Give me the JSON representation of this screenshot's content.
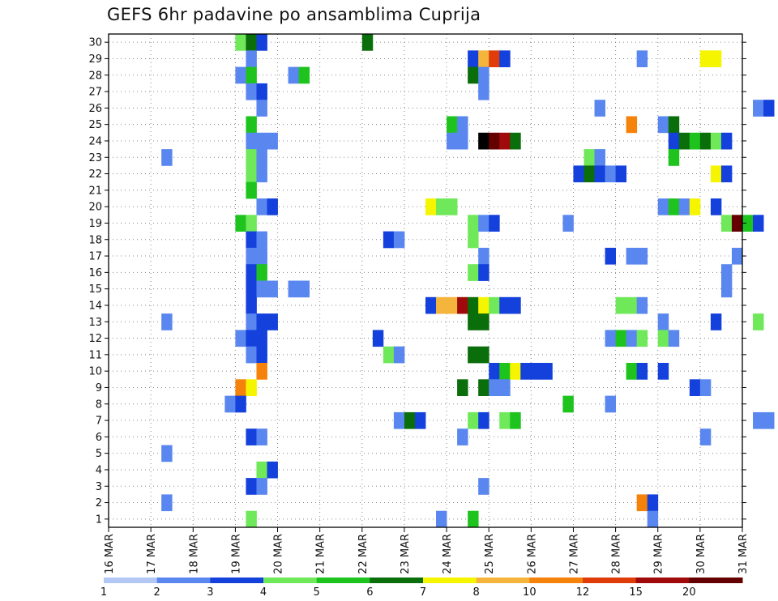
{
  "chart_data": {
    "type": "heatmap",
    "title": "GEFS 6hr padavine po ansamblima Cuprija",
    "xlabel": "",
    "ylabel": "",
    "y_ticks": [
      1,
      2,
      3,
      4,
      5,
      6,
      7,
      8,
      9,
      10,
      11,
      12,
      13,
      14,
      15,
      16,
      17,
      18,
      19,
      20,
      21,
      22,
      23,
      24,
      25,
      26,
      27,
      28,
      29,
      30
    ],
    "x_ticks": [
      "16 MAR",
      "17 MAR",
      "18 MAR",
      "19 MAR",
      "20 MAR",
      "21 MAR",
      "22 MAR",
      "23 MAR",
      "24 MAR",
      "25 MAR",
      "26 MAR",
      "27 MAR",
      "28 MAR",
      "29 MAR",
      "30 MAR",
      "31 MAR"
    ],
    "grid": true,
    "colorbar": {
      "labels": [
        "1",
        "2",
        "3",
        "4",
        "5",
        "6",
        "7",
        "8",
        "10",
        "12",
        "15",
        "20"
      ],
      "colors": [
        "#b4c8f5",
        "#5a87ef",
        "#1440dc",
        "#6fe85a",
        "#1ec31e",
        "#0a6e0a",
        "#f5f500",
        "#f5b43c",
        "#f5820a",
        "#e03c0a",
        "#a00a0a",
        "#640000"
      ]
    },
    "cells": [
      [
        19.0,
        30,
        3
      ],
      [
        19.25,
        30,
        5
      ],
      [
        19.5,
        30,
        2
      ],
      [
        22.0,
        30,
        5
      ],
      [
        19.25,
        29,
        1
      ],
      [
        24.5,
        29,
        2
      ],
      [
        24.75,
        29,
        7
      ],
      [
        25.0,
        29,
        9
      ],
      [
        25.25,
        29,
        2
      ],
      [
        28.5,
        29,
        1
      ],
      [
        30.0,
        29,
        6
      ],
      [
        30.25,
        29,
        6
      ],
      [
        19.0,
        28,
        1
      ],
      [
        19.25,
        28,
        4
      ],
      [
        20.25,
        28,
        1
      ],
      [
        20.5,
        28,
        4
      ],
      [
        24.5,
        28,
        5
      ],
      [
        24.75,
        28,
        1
      ],
      [
        19.25,
        27,
        1
      ],
      [
        19.5,
        27,
        2
      ],
      [
        24.75,
        27,
        1
      ],
      [
        19.5,
        26,
        1
      ],
      [
        27.5,
        26,
        1
      ],
      [
        31.25,
        26,
        1
      ],
      [
        31.5,
        26,
        2
      ],
      [
        19.25,
        25,
        4
      ],
      [
        24.0,
        25,
        4
      ],
      [
        24.25,
        25,
        1
      ],
      [
        28.25,
        25,
        8
      ],
      [
        29.0,
        25,
        1
      ],
      [
        29.25,
        25,
        5
      ],
      [
        19.25,
        24,
        1
      ],
      [
        19.5,
        24,
        1
      ],
      [
        19.75,
        24,
        1
      ],
      [
        24.0,
        24,
        1
      ],
      [
        24.25,
        24,
        1
      ],
      [
        24.75,
        24,
        12
      ],
      [
        25.0,
        24,
        11
      ],
      [
        25.25,
        24,
        10
      ],
      [
        25.5,
        24,
        5
      ],
      [
        29.25,
        24,
        2
      ],
      [
        29.5,
        24,
        5
      ],
      [
        29.75,
        24,
        4
      ],
      [
        30.0,
        24,
        5
      ],
      [
        30.25,
        24,
        3
      ],
      [
        30.5,
        24,
        2
      ],
      [
        17.25,
        23,
        1
      ],
      [
        19.25,
        23,
        3
      ],
      [
        19.5,
        23,
        1
      ],
      [
        27.25,
        23,
        3
      ],
      [
        27.5,
        23,
        1
      ],
      [
        29.25,
        23,
        4
      ],
      [
        19.25,
        22,
        3
      ],
      [
        19.5,
        22,
        1
      ],
      [
        27.0,
        22,
        2
      ],
      [
        27.25,
        22,
        5
      ],
      [
        27.5,
        22,
        2
      ],
      [
        27.75,
        22,
        1
      ],
      [
        28.0,
        22,
        2
      ],
      [
        30.25,
        22,
        6
      ],
      [
        30.5,
        22,
        2
      ],
      [
        19.25,
        21,
        4
      ],
      [
        19.5,
        20,
        1
      ],
      [
        19.75,
        20,
        2
      ],
      [
        23.5,
        20,
        6
      ],
      [
        23.75,
        20,
        3
      ],
      [
        24.0,
        20,
        3
      ],
      [
        29.0,
        20,
        1
      ],
      [
        29.25,
        20,
        4
      ],
      [
        29.5,
        20,
        1
      ],
      [
        29.75,
        20,
        6
      ],
      [
        30.25,
        20,
        2
      ],
      [
        19.0,
        19,
        4
      ],
      [
        19.25,
        19,
        3
      ],
      [
        24.5,
        19,
        3
      ],
      [
        24.75,
        19,
        1
      ],
      [
        25.0,
        19,
        2
      ],
      [
        26.75,
        19,
        1
      ],
      [
        30.5,
        19,
        3
      ],
      [
        30.75,
        19,
        11
      ],
      [
        31.0,
        19,
        4
      ],
      [
        31.25,
        19,
        2
      ],
      [
        19.25,
        18,
        2
      ],
      [
        19.5,
        18,
        1
      ],
      [
        22.5,
        18,
        2
      ],
      [
        22.75,
        18,
        1
      ],
      [
        24.5,
        18,
        3
      ],
      [
        19.25,
        17,
        1
      ],
      [
        19.5,
        17,
        1
      ],
      [
        24.75,
        17,
        1
      ],
      [
        27.75,
        17,
        2
      ],
      [
        28.25,
        17,
        1
      ],
      [
        28.5,
        17,
        1
      ],
      [
        30.75,
        17,
        1
      ],
      [
        19.25,
        16,
        2
      ],
      [
        19.5,
        16,
        4
      ],
      [
        24.5,
        16,
        3
      ],
      [
        24.75,
        16,
        2
      ],
      [
        30.5,
        16,
        1
      ],
      [
        19.25,
        15,
        2
      ],
      [
        19.5,
        15,
        1
      ],
      [
        19.75,
        15,
        1
      ],
      [
        20.25,
        15,
        1
      ],
      [
        20.5,
        15,
        1
      ],
      [
        30.5,
        15,
        1
      ],
      [
        19.25,
        14,
        2
      ],
      [
        23.5,
        14,
        2
      ],
      [
        23.75,
        14,
        7
      ],
      [
        24.0,
        14,
        7
      ],
      [
        24.25,
        14,
        10
      ],
      [
        24.5,
        14,
        5
      ],
      [
        24.75,
        14,
        6
      ],
      [
        25.0,
        14,
        3
      ],
      [
        25.25,
        14,
        2
      ],
      [
        25.5,
        14,
        2
      ],
      [
        28.0,
        14,
        3
      ],
      [
        28.25,
        14,
        3
      ],
      [
        28.5,
        14,
        1
      ],
      [
        17.25,
        13,
        1
      ],
      [
        19.25,
        13,
        1
      ],
      [
        19.5,
        13,
        2
      ],
      [
        19.75,
        13,
        2
      ],
      [
        24.5,
        13,
        5
      ],
      [
        24.75,
        13,
        5
      ],
      [
        29.0,
        13,
        1
      ],
      [
        30.25,
        13,
        2
      ],
      [
        31.25,
        13,
        3
      ],
      [
        19.0,
        12,
        1
      ],
      [
        19.25,
        12,
        2
      ],
      [
        19.5,
        12,
        2
      ],
      [
        22.25,
        12,
        2
      ],
      [
        27.75,
        12,
        1
      ],
      [
        28.0,
        12,
        4
      ],
      [
        28.25,
        12,
        1
      ],
      [
        28.5,
        12,
        3
      ],
      [
        29.0,
        12,
        3
      ],
      [
        29.25,
        12,
        1
      ],
      [
        19.25,
        11,
        1
      ],
      [
        19.5,
        11,
        2
      ],
      [
        22.5,
        11,
        3
      ],
      [
        22.75,
        11,
        1
      ],
      [
        24.5,
        11,
        5
      ],
      [
        24.75,
        11,
        5
      ],
      [
        19.5,
        10,
        8
      ],
      [
        25.0,
        10,
        2
      ],
      [
        25.25,
        10,
        4
      ],
      [
        25.5,
        10,
        6
      ],
      [
        25.75,
        10,
        2
      ],
      [
        26.0,
        10,
        2
      ],
      [
        26.25,
        10,
        2
      ],
      [
        28.25,
        10,
        4
      ],
      [
        28.5,
        10,
        2
      ],
      [
        29.0,
        10,
        2
      ],
      [
        19.0,
        9,
        8
      ],
      [
        19.25,
        9,
        6
      ],
      [
        24.25,
        9,
        5
      ],
      [
        24.75,
        9,
        5
      ],
      [
        25.0,
        9,
        1
      ],
      [
        25.25,
        9,
        1
      ],
      [
        29.75,
        9,
        2
      ],
      [
        30.0,
        9,
        1
      ],
      [
        18.75,
        8,
        1
      ],
      [
        19.0,
        8,
        2
      ],
      [
        26.75,
        8,
        4
      ],
      [
        27.75,
        8,
        1
      ],
      [
        22.75,
        7,
        1
      ],
      [
        23.0,
        7,
        5
      ],
      [
        23.25,
        7,
        2
      ],
      [
        24.5,
        7,
        3
      ],
      [
        24.75,
        7,
        2
      ],
      [
        25.25,
        7,
        3
      ],
      [
        25.5,
        7,
        4
      ],
      [
        31.25,
        7,
        1
      ],
      [
        31.5,
        7,
        1
      ],
      [
        19.25,
        6,
        2
      ],
      [
        19.5,
        6,
        1
      ],
      [
        24.25,
        6,
        1
      ],
      [
        30.0,
        6,
        1
      ],
      [
        17.25,
        5,
        1
      ],
      [
        19.5,
        4,
        3
      ],
      [
        19.75,
        4,
        2
      ],
      [
        19.25,
        3,
        2
      ],
      [
        19.5,
        3,
        1
      ],
      [
        24.75,
        3,
        1
      ],
      [
        17.25,
        2,
        1
      ],
      [
        28.5,
        2,
        8
      ],
      [
        28.75,
        2,
        2
      ],
      [
        19.25,
        1,
        3
      ],
      [
        23.75,
        1,
        1
      ],
      [
        24.5,
        1,
        4
      ],
      [
        28.75,
        1,
        1
      ]
    ]
  }
}
